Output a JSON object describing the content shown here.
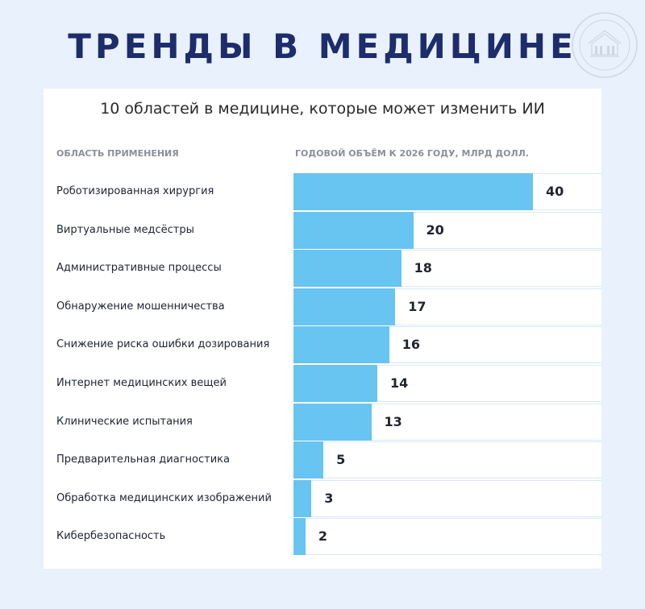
{
  "header": {
    "title": "ТРЕНДЫ В МЕДИЦИНЕ"
  },
  "colors": {
    "background": "#e8f1fc",
    "title": "#1d2c6b",
    "bar": "#68c4f0",
    "card": "#ffffff"
  },
  "chart_data": {
    "type": "bar",
    "orientation": "horizontal",
    "title": "10 областей в медицине, которые может изменить ИИ",
    "category_header": "ОБЛАСТЬ ПРИМЕНЕНИЯ",
    "value_header": "ГОДОВОЙ ОБЪЁМ К 2026 ГОДУ, МЛРД ДОЛЛ.",
    "categories": [
      "Роботизированная хирургия",
      "Виртуальные медсёстры",
      "Административные процессы",
      "Обнаружение мошенничества",
      "Снижение риска ошибки дозирования",
      "Интернет медицинских вещей",
      "Клинические испытания",
      "Предварительная диагностика",
      "Обработка медицинских изображений",
      "Кибербезопасность"
    ],
    "values": [
      40,
      20,
      18,
      17,
      16,
      14,
      13,
      5,
      3,
      2
    ],
    "xlim": [
      0,
      40
    ],
    "grid": false
  }
}
